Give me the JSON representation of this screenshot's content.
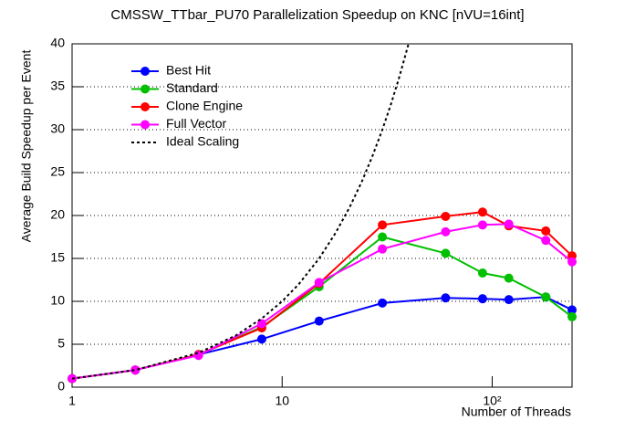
{
  "chart_data": {
    "type": "line",
    "title": "CMSSW_TTbar_PU70 Parallelization Speedup on KNC [nVU=16int]",
    "x_label": "Number of Threads",
    "y_label": "Average Build Speedup per Event",
    "x": [
      1,
      2,
      4,
      8,
      15,
      30,
      60,
      90,
      120,
      180,
      240
    ],
    "xscale": "log",
    "xlim": [
      1,
      240
    ],
    "xticks": [
      1,
      10,
      {
        "value": 100,
        "label": "10²"
      }
    ],
    "ylim": [
      0,
      40
    ],
    "yticks": [
      0,
      5,
      10,
      15,
      20,
      25,
      30,
      35,
      40
    ],
    "grid": true,
    "legend": "upper left",
    "series": [
      {
        "name": "Best Hit",
        "color": "#0000ff",
        "marker": true,
        "values": [
          1,
          2,
          3.8,
          5.6,
          7.7,
          9.8,
          10.4,
          10.3,
          10.2,
          10.5,
          9.0
        ]
      },
      {
        "name": "Standard",
        "color": "#00c000",
        "marker": true,
        "values": [
          1,
          2,
          3.8,
          7.0,
          11.7,
          17.5,
          15.6,
          13.3,
          12.7,
          10.5,
          8.2
        ]
      },
      {
        "name": "Clone Engine",
        "color": "#ff0000",
        "marker": true,
        "values": [
          1,
          2,
          3.8,
          6.9,
          12.1,
          18.9,
          19.9,
          20.4,
          18.8,
          18.2,
          15.3
        ]
      },
      {
        "name": "Full Vector",
        "color": "#ff00ff",
        "marker": true,
        "values": [
          1,
          2,
          3.7,
          7.4,
          12.2,
          16.1,
          18.1,
          18.9,
          19.0,
          17.1,
          14.6
        ]
      },
      {
        "name": "Ideal Scaling",
        "color": "#000000",
        "marker": false,
        "dashed": true,
        "x": [
          1,
          2,
          4,
          6,
          8,
          10,
          12,
          15,
          18,
          21,
          24,
          27,
          30,
          33,
          36,
          40
        ],
        "values": [
          1,
          2,
          4,
          6,
          8,
          10,
          12,
          15,
          18,
          21,
          24,
          27,
          30,
          33,
          36,
          40
        ]
      }
    ]
  }
}
